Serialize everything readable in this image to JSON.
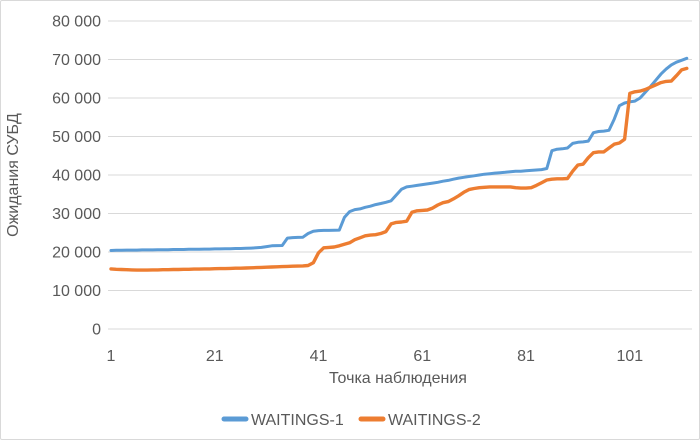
{
  "chart_data": {
    "type": "line",
    "title": "",
    "xlabel": "Точка наблюдения",
    "ylabel": "Ожидания СУБД",
    "grid": true,
    "legend_position": "bottom",
    "x_axis": {
      "ticks": [
        1,
        21,
        41,
        61,
        81,
        101
      ],
      "min": 1,
      "max": 112
    },
    "y_axis": {
      "min": 0,
      "max": 80000,
      "tick_values": [
        0,
        10000,
        20000,
        30000,
        40000,
        50000,
        60000,
        70000,
        80000
      ],
      "tick_labels": [
        "0",
        "10 000",
        "20 000",
        "30 000",
        "40 000",
        "50 000",
        "60 000",
        "70 000",
        "80 000"
      ]
    },
    "colors": {
      "series1": "#5B9BD5",
      "series2": "#ED7D31",
      "grid": "#D9D9D9",
      "text": "#595959"
    },
    "series": [
      {
        "name": "WAITINGS-1",
        "color": "#5B9BD5",
        "stroke_width": 3,
        "values": [
          20400,
          20450,
          20450,
          20500,
          20500,
          20500,
          20550,
          20550,
          20550,
          20600,
          20600,
          20600,
          20650,
          20650,
          20650,
          20700,
          20700,
          20700,
          20750,
          20750,
          20800,
          20800,
          20850,
          20850,
          20900,
          20900,
          20950,
          21000,
          21100,
          21200,
          21400,
          21600,
          21650,
          21700,
          23600,
          23750,
          23800,
          23850,
          24800,
          25400,
          25550,
          25600,
          25600,
          25650,
          25700,
          29000,
          30500,
          31000,
          31200,
          31600,
          31900,
          32300,
          32600,
          32900,
          33300,
          34800,
          36300,
          36900,
          37100,
          37300,
          37500,
          37700,
          37900,
          38100,
          38400,
          38600,
          38900,
          39200,
          39400,
          39600,
          39800,
          40000,
          40200,
          40350,
          40500,
          40600,
          40700,
          40850,
          40950,
          41000,
          41100,
          41200,
          41300,
          41400,
          41700,
          46300,
          46700,
          46800,
          47000,
          48200,
          48500,
          48600,
          48800,
          51000,
          51300,
          51400,
          51600,
          54500,
          58000,
          58700,
          59000,
          59200,
          60000,
          61500,
          63000,
          64600,
          66200,
          67500,
          68600,
          69300,
          69800,
          70300
        ]
      },
      {
        "name": "WAITINGS-2",
        "color": "#ED7D31",
        "stroke_width": 3.4,
        "values": [
          15600,
          15500,
          15450,
          15400,
          15350,
          15300,
          15300,
          15300,
          15350,
          15350,
          15400,
          15400,
          15450,
          15450,
          15500,
          15500,
          15550,
          15550,
          15600,
          15600,
          15650,
          15700,
          15700,
          15750,
          15800,
          15800,
          15850,
          15900,
          15950,
          16000,
          16050,
          16100,
          16150,
          16200,
          16250,
          16300,
          16350,
          16400,
          16500,
          17200,
          19800,
          21100,
          21200,
          21300,
          21600,
          22000,
          22400,
          23200,
          23700,
          24200,
          24400,
          24500,
          24800,
          25300,
          27300,
          27700,
          27800,
          28000,
          30300,
          30700,
          30800,
          30900,
          31400,
          32200,
          32800,
          33100,
          33800,
          34600,
          35500,
          36200,
          36500,
          36700,
          36800,
          36900,
          36900,
          36900,
          36900,
          36900,
          36700,
          36600,
          36600,
          36700,
          37300,
          38000,
          38700,
          38900,
          39000,
          39000,
          39100,
          41000,
          42600,
          42800,
          44500,
          45800,
          46000,
          46000,
          47000,
          48000,
          48300,
          49300,
          61200,
          61600,
          61800,
          62200,
          62800,
          63400,
          64000,
          64300,
          64400,
          65800,
          67300,
          67700
        ]
      }
    ]
  }
}
